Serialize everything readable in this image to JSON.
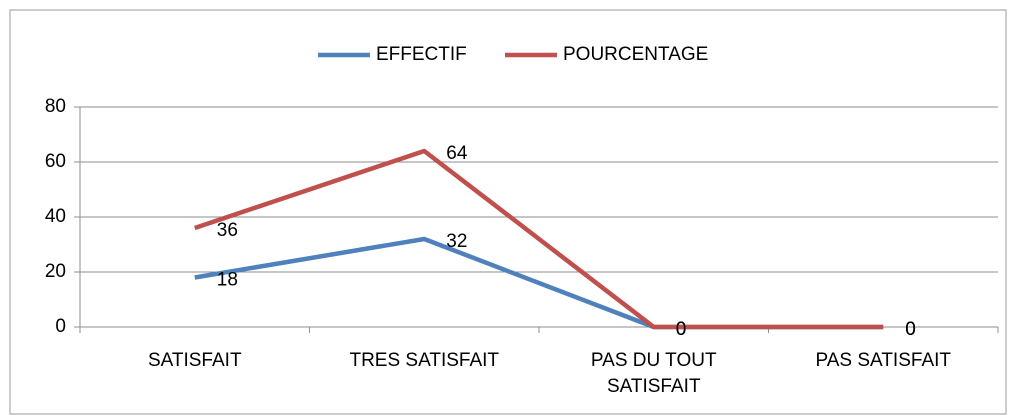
{
  "chart_data": {
    "type": "line",
    "categories": [
      "SATISFAIT",
      "TRES SATISFAIT",
      "PAS DU TOUT SATISFAIT",
      "PAS SATISFAIT"
    ],
    "series": [
      {
        "name": "EFFECTIF",
        "color": "#4f81bd",
        "values": [
          18,
          32,
          0,
          0
        ]
      },
      {
        "name": "POURCENTAGE",
        "color": "#c0504d",
        "values": [
          36,
          64,
          0,
          0
        ]
      }
    ],
    "ylim": [
      0,
      80
    ],
    "yticks": [
      0,
      20,
      40,
      60,
      80
    ],
    "grid": true,
    "legend": "top"
  }
}
